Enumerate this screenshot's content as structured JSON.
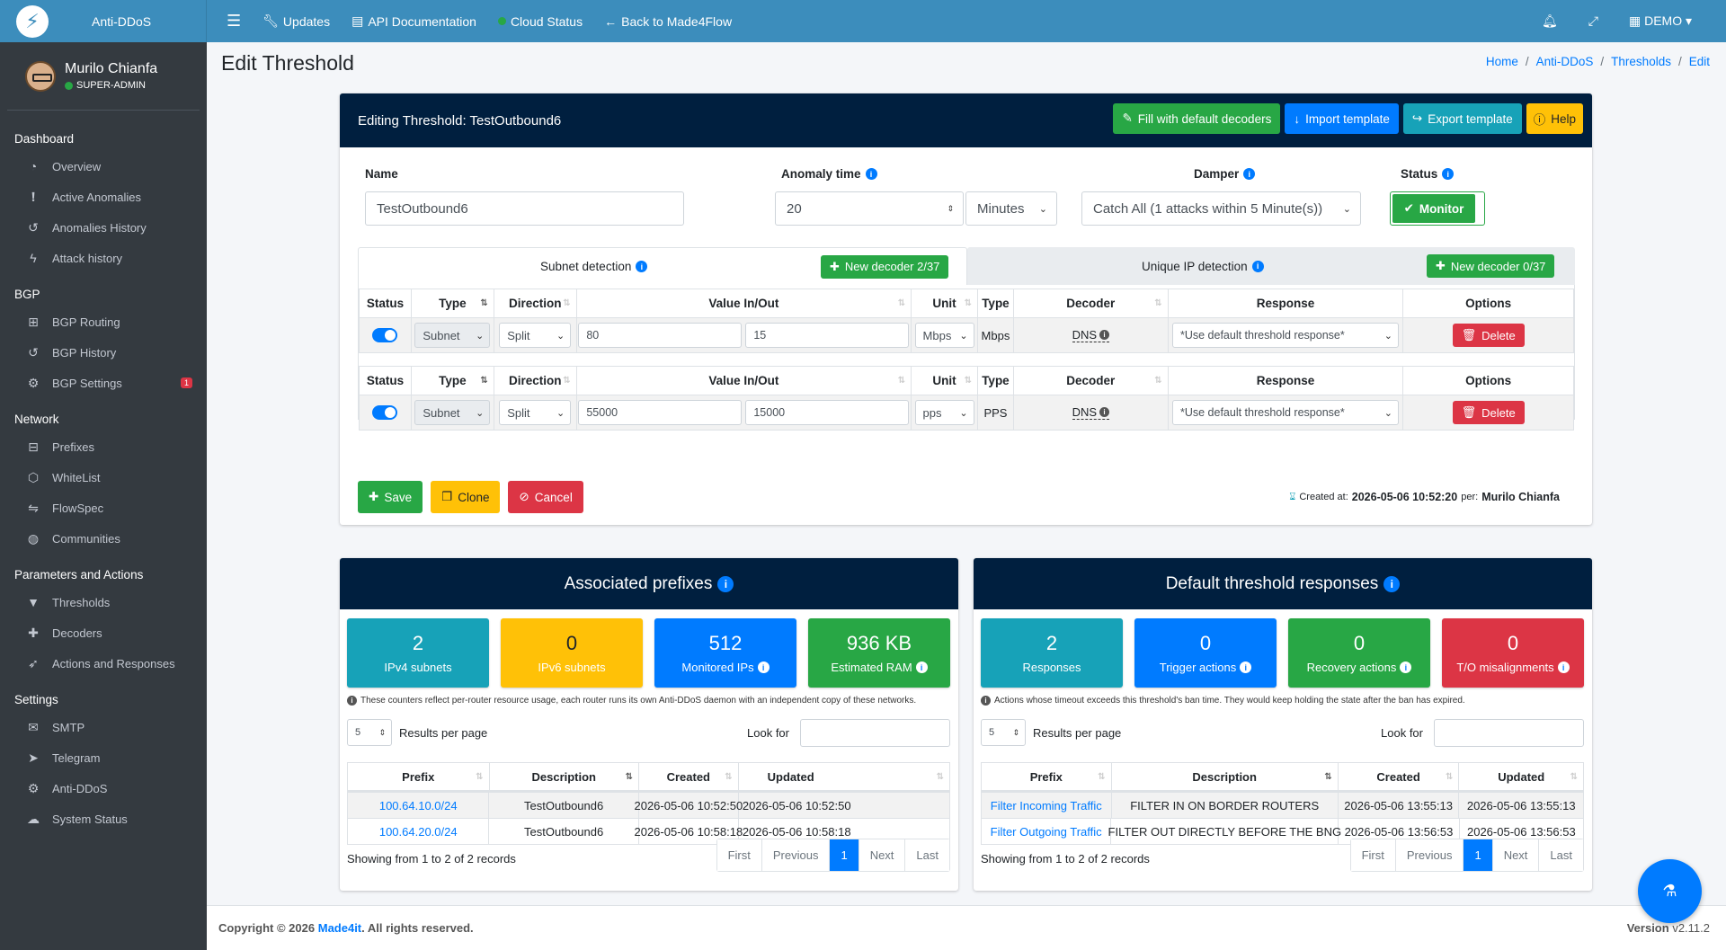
{
  "brand": {
    "name": "Anti-DDoS"
  },
  "topnav": {
    "menu_icon": "bars-icon",
    "items": [
      {
        "label": "Updates",
        "icon": "wrench-icon"
      },
      {
        "label": "API Documentation",
        "icon": "book-icon"
      },
      {
        "label": "Cloud Status",
        "icon": "status-dot-icon"
      },
      {
        "label": "Back to Made4Flow",
        "icon": "arrow-left-icon"
      }
    ],
    "right": {
      "bell": "bell-icon",
      "expand": "expand-icon",
      "account": "DEMO"
    }
  },
  "sidebar": {
    "user": {
      "name": "Murilo Chianfa",
      "role": "SUPER-ADMIN"
    },
    "sections": [
      {
        "title": "Dashboard",
        "items": [
          "Overview",
          "Active Anomalies",
          "Anomalies History",
          "Attack history"
        ]
      },
      {
        "title": "BGP",
        "items": [
          "BGP Routing",
          "BGP History",
          "BGP Settings"
        ]
      },
      {
        "title": "Network",
        "items": [
          "Prefixes",
          "WhiteList",
          "FlowSpec",
          "Communities"
        ]
      },
      {
        "title": "Parameters and Actions",
        "items": [
          "Thresholds",
          "Decoders",
          "Actions and Responses"
        ]
      },
      {
        "title": "Settings",
        "items": [
          "SMTP",
          "Telegram",
          "Anti-DDoS",
          "System Status"
        ]
      }
    ],
    "bgp_settings_badge": "1"
  },
  "page": {
    "title": "Edit Threshold",
    "breadcrumb": [
      "Home",
      "Anti-DDoS",
      "Thresholds",
      "Edit"
    ]
  },
  "editor": {
    "header": "Editing Threshold: TestOutbound6",
    "buttons": {
      "fill": "Fill with default decoders",
      "import": "Import template",
      "export": "Export template",
      "help": "Help"
    },
    "labels": {
      "name": "Name",
      "anomaly_time": "Anomaly time",
      "damper": "Damper",
      "status": "Status"
    },
    "values": {
      "name": "TestOutbound6",
      "anomaly_time": "20",
      "anomaly_unit": "Minutes",
      "damper": "Catch All (1 attacks within 5 Minute(s))",
      "status": "Monitor"
    },
    "tabs": {
      "subnet": {
        "label": "Subnet detection",
        "button": "New decoder 2/37"
      },
      "unique": {
        "label": "Unique IP detection",
        "button": "New decoder 0/37"
      }
    },
    "columns": [
      "Status",
      "Type",
      "Direction",
      "Value In/Out",
      "Unit",
      "Type",
      "Decoder",
      "Response",
      "Options"
    ],
    "rows": [
      {
        "type": "Subnet",
        "direction": "Split",
        "in": "80",
        "out": "15",
        "unit": "Mbps",
        "unit_type": "Mbps",
        "decoder": "DNS",
        "response": "*Use default threshold response*",
        "delete": "Delete"
      },
      {
        "type": "Subnet",
        "direction": "Split",
        "in": "55000",
        "out": "15000",
        "unit": "pps",
        "unit_type": "PPS",
        "decoder": "DNS",
        "response": "*Use default threshold response*",
        "delete": "Delete"
      }
    ],
    "actions": {
      "save": "Save",
      "clone": "Clone",
      "cancel": "Cancel"
    },
    "created": {
      "prefix": "Created at:",
      "date": "2026-05-06 10:52:20",
      "per": "per:",
      "user": "Murilo Chianfa"
    }
  },
  "prefixes": {
    "title": "Associated prefixes",
    "stats": [
      {
        "value": "2",
        "label": "IPv4 subnets",
        "color": "#17a2b8"
      },
      {
        "value": "0",
        "label": "IPv6 subnets",
        "color": "#ffc107"
      },
      {
        "value": "512",
        "label": "Monitored IPs",
        "color": "#007bff"
      },
      {
        "value": "936 KB",
        "label": "Estimated RAM",
        "color": "#28a745"
      }
    ],
    "note": "These counters reflect per-router resource usage, each router runs its own Anti-DDoS daemon with an independent copy of these networks.",
    "rpp": "5",
    "rpp_label": "Results per page",
    "look_for": "Look for",
    "columns": [
      "Prefix",
      "Description",
      "Created",
      "Updated"
    ],
    "rows": [
      {
        "prefix": "100.64.10.0/24",
        "description": "TestOutbound6",
        "created": "2026-05-06 10:52:50",
        "updated": "2026-05-06 10:52:50"
      },
      {
        "prefix": "100.64.20.0/24",
        "description": "TestOutbound6",
        "created": "2026-05-06 10:58:18",
        "updated": "2026-05-06 10:58:18"
      }
    ],
    "showing": "Showing from 1 to 2 of 2 records",
    "pager": [
      "First",
      "Previous",
      "1",
      "Next",
      "Last"
    ]
  },
  "responses": {
    "title": "Default threshold responses",
    "stats": [
      {
        "value": "2",
        "label": "Responses",
        "color": "#17a2b8"
      },
      {
        "value": "0",
        "label": "Trigger actions",
        "color": "#007bff"
      },
      {
        "value": "0",
        "label": "Recovery actions",
        "color": "#28a745"
      },
      {
        "value": "0",
        "label": "T/O misalignments",
        "color": "#dc3545"
      }
    ],
    "note": "Actions whose timeout exceeds this threshold's ban time. They would keep holding the state after the ban has expired.",
    "rpp": "5",
    "rpp_label": "Results per page",
    "look_for": "Look for",
    "columns": [
      "Prefix",
      "Description",
      "Created",
      "Updated"
    ],
    "rows": [
      {
        "prefix": "Filter Incoming Traffic",
        "description": "FILTER IN ON BORDER ROUTERS",
        "created": "2026-05-06 13:55:13",
        "updated": "2026-05-06 13:55:13"
      },
      {
        "prefix": "Filter Outgoing Traffic",
        "description": "FILTER OUT DIRECTLY BEFORE THE BNG",
        "created": "2026-05-06 13:56:53",
        "updated": "2026-05-06 13:56:53"
      }
    ],
    "showing": "Showing from 1 to 2 of 2 records",
    "pager": [
      "First",
      "Previous",
      "1",
      "Next",
      "Last"
    ]
  },
  "footer": {
    "copyright": "Copyright © 2026",
    "company": "Made4it",
    "rights": ". All rights reserved.",
    "version_label": "Version",
    "version": "v2.11.2"
  }
}
